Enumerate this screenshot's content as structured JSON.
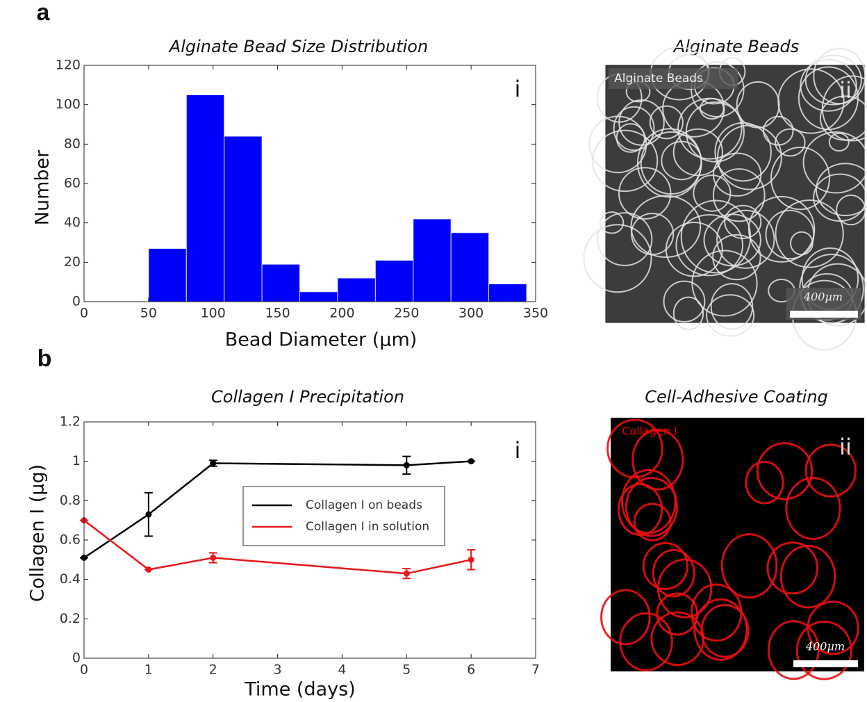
{
  "chart_data": [
    {
      "type": "histogram",
      "title": "Alginate Bead Size Distribution",
      "x_label": "Bead Diameter (μm)",
      "y_label": "Number",
      "annotation": "i",
      "bins": [
        50,
        79.3,
        108.6,
        137.9,
        167.2,
        196.5,
        225.8,
        255.1,
        284.4,
        313.7,
        343
      ],
      "values": [
        27,
        105,
        84,
        19,
        5,
        12,
        21,
        42,
        35,
        9
      ],
      "color": "#0000ff",
      "xlim": [
        0,
        350
      ],
      "xticks": [
        0,
        50,
        100,
        150,
        200,
        250,
        300,
        350
      ],
      "ylim": [
        0,
        120
      ],
      "yticks": [
        0,
        20,
        40,
        60,
        80,
        100,
        120
      ],
      "grid": false
    },
    {
      "type": "line",
      "title": "Collagen I Precipitation",
      "x_label": "Time (days)",
      "y_label": "Collagen I (μg)",
      "annotation": "i",
      "x": [
        0,
        1,
        2,
        5,
        6
      ],
      "series": [
        {
          "name": "Collagen I on beads",
          "color": "#000000",
          "values": [
            0.51,
            0.73,
            0.99,
            0.98,
            1.0
          ],
          "errors": [
            0,
            0.11,
            0.015,
            0.045,
            0
          ]
        },
        {
          "name": "Collagen I in solution",
          "color": "#e8161b",
          "values": [
            0.7,
            0.45,
            0.51,
            0.43,
            0.5
          ],
          "errors": [
            0,
            0,
            0.025,
            0.025,
            0.05
          ]
        }
      ],
      "xlim": [
        0,
        7
      ],
      "xticks": [
        0,
        1,
        2,
        3,
        4,
        5,
        6,
        7
      ],
      "ylim": [
        0,
        1.2
      ],
      "yticks": [
        0,
        0.2,
        0.4,
        0.6,
        0.8,
        1,
        1.2
      ],
      "grid": false,
      "legend": "center"
    }
  ],
  "figure": {
    "panel_labels": [
      "a",
      "b"
    ],
    "images": [
      {
        "title": "Alginate Beads",
        "overlay_label": "Alginate Beads",
        "panel": "ii",
        "scale_label": "400μm"
      },
      {
        "title": "Cell-Adhesive Coating",
        "overlay_label": "Collagen I",
        "panel": "ii",
        "scale_label": "400μm"
      }
    ]
  }
}
